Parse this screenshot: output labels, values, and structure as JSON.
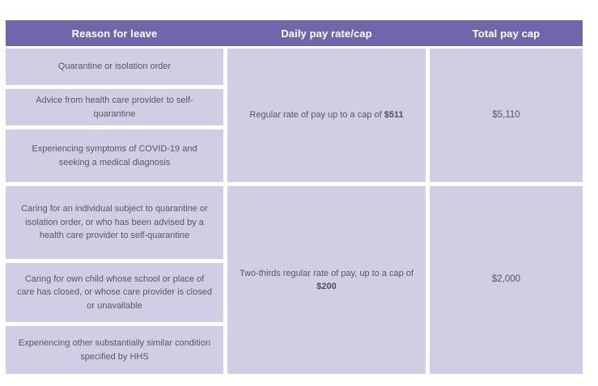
{
  "table": {
    "columns": [
      {
        "label": "Reason for leave"
      },
      {
        "label": "Daily pay rate/cap"
      },
      {
        "label": "Total pay cap"
      }
    ],
    "groups": [
      {
        "reasons": [
          "Quarantine or isolation order",
          "Advice from health care provider to self-quarantine",
          "Experiencing symptoms of COVID-19 and seeking a medical diagnosis"
        ],
        "daily_rate_prefix": "Regular rate of pay up to a cap of ",
        "daily_rate_cap": "$511",
        "total_cap": "$5,110"
      },
      {
        "reasons": [
          "Caring for an individual subject to quarantine or isolation order, or who has been advised by a health care provider to self-quarantine",
          "Caring for own child whose school or place of care has closed, or whose care provider is closed or unavailable",
          "Experiencing other substantially similar condition specified by HHS"
        ],
        "daily_rate_prefix": "Two-thirds regular rate of pay, up to a cap of ",
        "daily_rate_cap": "$200",
        "total_cap": "$2,000"
      }
    ],
    "colors": {
      "header_bg": "#7165ab",
      "header_text": "#ffffff",
      "cell_bg": "#d2cde4",
      "body_text": "#5a575f"
    }
  }
}
